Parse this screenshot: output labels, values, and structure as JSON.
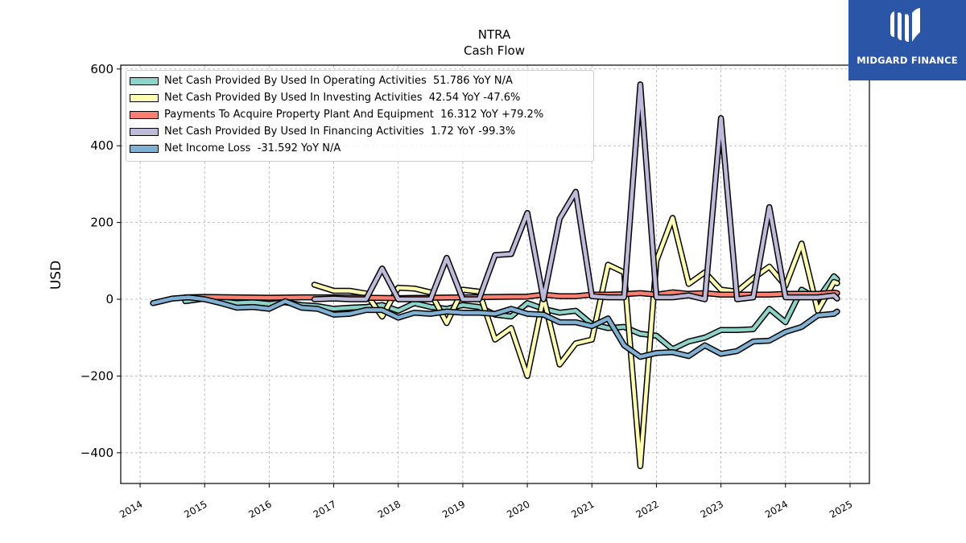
{
  "brand": {
    "name": "MIDGARD FINANCE",
    "color": "#2b56a8"
  },
  "chart_data": {
    "type": "line",
    "title": "NTRA",
    "subtitle": "Cash Flow",
    "xlabel": "",
    "ylabel": "USD",
    "xlim": [
      2013.7,
      2025.3
    ],
    "ylim": [
      -480,
      610
    ],
    "xticks": [
      "2014",
      "2015",
      "2016",
      "2017",
      "2018",
      "2019",
      "2020",
      "2021",
      "2022",
      "2023",
      "2024",
      "2025"
    ],
    "yticks": [
      -400,
      -200,
      0,
      200,
      400,
      600
    ],
    "ytick_labels": [
      "−400",
      "−200",
      "0",
      "200",
      "400",
      "600"
    ],
    "grid": true,
    "legend_position": "top-left",
    "series": [
      {
        "name": "Net Cash Provided By Used In Operating Activities  51.786 YoY N/A",
        "color": "#8dd3c7",
        "points": [
          [
            2014.7,
            -5
          ],
          [
            2015.0,
            2
          ],
          [
            2015.25,
            -5
          ],
          [
            2015.5,
            -10
          ],
          [
            2015.75,
            -8
          ],
          [
            2016.0,
            -12
          ],
          [
            2016.25,
            -8
          ],
          [
            2016.5,
            -15
          ],
          [
            2016.75,
            -18
          ],
          [
            2017.0,
            -25
          ],
          [
            2017.25,
            -22
          ],
          [
            2017.5,
            -20
          ],
          [
            2017.75,
            -15
          ],
          [
            2018.0,
            -30
          ],
          [
            2018.25,
            -10
          ],
          [
            2018.5,
            -20
          ],
          [
            2018.75,
            -25
          ],
          [
            2019.0,
            -15
          ],
          [
            2019.25,
            -20
          ],
          [
            2019.5,
            -40
          ],
          [
            2019.75,
            -45
          ],
          [
            2020.0,
            -10
          ],
          [
            2020.25,
            -25
          ],
          [
            2020.5,
            -35
          ],
          [
            2020.75,
            -30
          ],
          [
            2021.0,
            -65
          ],
          [
            2021.25,
            -75
          ],
          [
            2021.5,
            -72
          ],
          [
            2021.75,
            -90
          ],
          [
            2022.0,
            -95
          ],
          [
            2022.25,
            -130
          ],
          [
            2022.5,
            -110
          ],
          [
            2022.75,
            -100
          ],
          [
            2023.0,
            -80
          ],
          [
            2023.25,
            -80
          ],
          [
            2023.5,
            -78
          ],
          [
            2023.75,
            -25
          ],
          [
            2024.0,
            -60
          ],
          [
            2024.25,
            25
          ],
          [
            2024.5,
            0
          ],
          [
            2024.75,
            60
          ],
          [
            2024.8,
            52
          ]
        ]
      },
      {
        "name": "Net Cash Provided By Used In Investing Activities  42.54 YoY -47.6%",
        "color": "#ffffb3",
        "points": [
          [
            2016.7,
            38
          ],
          [
            2017.0,
            22
          ],
          [
            2017.25,
            22
          ],
          [
            2017.5,
            15
          ],
          [
            2017.75,
            -45
          ],
          [
            2018.0,
            30
          ],
          [
            2018.25,
            28
          ],
          [
            2018.5,
            18
          ],
          [
            2018.75,
            -62
          ],
          [
            2019.0,
            25
          ],
          [
            2019.25,
            20
          ],
          [
            2019.5,
            -105
          ],
          [
            2019.75,
            -75
          ],
          [
            2020.0,
            -200
          ],
          [
            2020.25,
            5
          ],
          [
            2020.5,
            -170
          ],
          [
            2020.75,
            -115
          ],
          [
            2021.0,
            -105
          ],
          [
            2021.25,
            90
          ],
          [
            2021.5,
            70
          ],
          [
            2021.75,
            -435
          ],
          [
            2022.0,
            100
          ],
          [
            2022.25,
            212
          ],
          [
            2022.5,
            40
          ],
          [
            2022.75,
            70
          ],
          [
            2023.0,
            25
          ],
          [
            2023.25,
            20
          ],
          [
            2023.5,
            55
          ],
          [
            2023.75,
            85
          ],
          [
            2024.0,
            35
          ],
          [
            2024.25,
            145
          ],
          [
            2024.5,
            -30
          ],
          [
            2024.75,
            45
          ],
          [
            2024.8,
            42
          ]
        ]
      },
      {
        "name": "Payments To Acquire Property Plant And Equipment  16.312 YoY +79.2%",
        "color": "#fb8072",
        "points": [
          [
            2014.7,
            5
          ],
          [
            2015.0,
            6
          ],
          [
            2015.5,
            5
          ],
          [
            2016.0,
            4
          ],
          [
            2016.5,
            5
          ],
          [
            2017.0,
            5
          ],
          [
            2017.5,
            4
          ],
          [
            2018.0,
            3
          ],
          [
            2018.5,
            4
          ],
          [
            2019.0,
            5
          ],
          [
            2019.5,
            6
          ],
          [
            2020.0,
            7
          ],
          [
            2020.25,
            12
          ],
          [
            2020.5,
            8
          ],
          [
            2020.75,
            8
          ],
          [
            2021.0,
            12
          ],
          [
            2021.25,
            12
          ],
          [
            2021.5,
            13
          ],
          [
            2021.75,
            16
          ],
          [
            2022.0,
            12
          ],
          [
            2022.25,
            18
          ],
          [
            2022.5,
            14
          ],
          [
            2022.75,
            16
          ],
          [
            2023.0,
            12
          ],
          [
            2023.25,
            12
          ],
          [
            2023.5,
            12
          ],
          [
            2023.75,
            12
          ],
          [
            2024.0,
            14
          ],
          [
            2024.25,
            14
          ],
          [
            2024.5,
            14
          ],
          [
            2024.75,
            17
          ],
          [
            2024.8,
            16
          ]
        ]
      },
      {
        "name": "Net Cash Provided By Used In Financing Activities  1.72 YoY -99.3%",
        "color": "#bebada",
        "points": [
          [
            2016.7,
            0
          ],
          [
            2017.0,
            2
          ],
          [
            2017.25,
            0
          ],
          [
            2017.5,
            0
          ],
          [
            2017.75,
            80
          ],
          [
            2018.0,
            0
          ],
          [
            2018.25,
            0
          ],
          [
            2018.5,
            0
          ],
          [
            2018.75,
            108
          ],
          [
            2019.0,
            0
          ],
          [
            2019.25,
            0
          ],
          [
            2019.5,
            115
          ],
          [
            2019.75,
            118
          ],
          [
            2020.0,
            225
          ],
          [
            2020.25,
            0
          ],
          [
            2020.5,
            210
          ],
          [
            2020.75,
            280
          ],
          [
            2021.0,
            8
          ],
          [
            2021.25,
            5
          ],
          [
            2021.5,
            5
          ],
          [
            2021.75,
            560
          ],
          [
            2022.0,
            5
          ],
          [
            2022.25,
            5
          ],
          [
            2022.5,
            10
          ],
          [
            2022.75,
            0
          ],
          [
            2023.0,
            472
          ],
          [
            2023.25,
            0
          ],
          [
            2023.5,
            5
          ],
          [
            2023.75,
            240
          ],
          [
            2024.0,
            5
          ],
          [
            2024.25,
            5
          ],
          [
            2024.5,
            5
          ],
          [
            2024.75,
            10
          ],
          [
            2024.8,
            2
          ]
        ]
      },
      {
        "name": "Net Income Loss  -31.592 YoY N/A",
        "color": "#80b1d3",
        "points": [
          [
            2014.2,
            -10
          ],
          [
            2014.5,
            2
          ],
          [
            2014.75,
            5
          ],
          [
            2015.0,
            0
          ],
          [
            2015.25,
            -10
          ],
          [
            2015.5,
            -22
          ],
          [
            2015.75,
            -20
          ],
          [
            2016.0,
            -25
          ],
          [
            2016.25,
            -5
          ],
          [
            2016.5,
            -22
          ],
          [
            2016.75,
            -25
          ],
          [
            2017.0,
            -40
          ],
          [
            2017.25,
            -38
          ],
          [
            2017.5,
            -28
          ],
          [
            2017.75,
            -28
          ],
          [
            2018.0,
            -48
          ],
          [
            2018.25,
            -35
          ],
          [
            2018.5,
            -38
          ],
          [
            2018.75,
            -32
          ],
          [
            2019.0,
            -35
          ],
          [
            2019.25,
            -35
          ],
          [
            2019.5,
            -38
          ],
          [
            2019.75,
            -25
          ],
          [
            2020.0,
            -38
          ],
          [
            2020.25,
            -40
          ],
          [
            2020.5,
            -60
          ],
          [
            2020.75,
            -60
          ],
          [
            2021.0,
            -70
          ],
          [
            2021.25,
            -50
          ],
          [
            2021.5,
            -120
          ],
          [
            2021.75,
            -150
          ],
          [
            2022.0,
            -140
          ],
          [
            2022.25,
            -138
          ],
          [
            2022.5,
            -148
          ],
          [
            2022.75,
            -120
          ],
          [
            2023.0,
            -142
          ],
          [
            2023.25,
            -135
          ],
          [
            2023.5,
            -110
          ],
          [
            2023.75,
            -108
          ],
          [
            2024.0,
            -85
          ],
          [
            2024.25,
            -72
          ],
          [
            2024.5,
            -42
          ],
          [
            2024.75,
            -38
          ],
          [
            2024.8,
            -32
          ]
        ]
      }
    ]
  }
}
